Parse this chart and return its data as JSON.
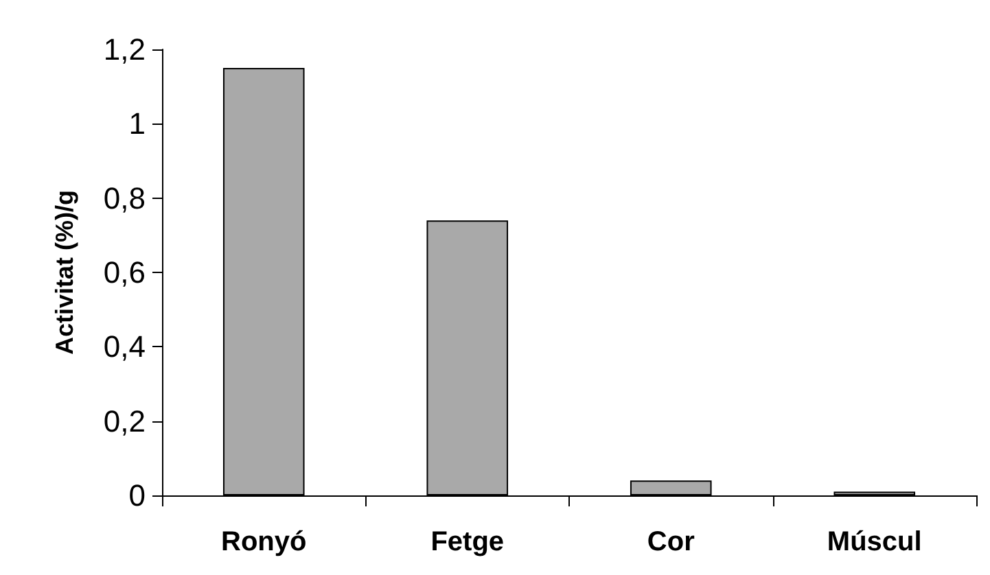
{
  "chart_data": {
    "type": "bar",
    "ylabel": "Activitat (%)/g",
    "categories": [
      "Ronyó",
      "Fetge",
      "Cor",
      "Múscul"
    ],
    "values": [
      1.15,
      0.74,
      0.04,
      0.01
    ],
    "color": "#a9a9a9",
    "ylim": [
      0,
      1.2
    ],
    "yticks": [
      0,
      {
        "value": 0.2,
        "label": "0,2"
      },
      {
        "value": 0.4,
        "label": "0,4"
      },
      {
        "value": 0.6,
        "label": "0,6"
      },
      {
        "value": 0.8,
        "label": "0,8"
      },
      1,
      {
        "value": 1.2,
        "label": "1,2"
      }
    ],
    "grid": false
  }
}
